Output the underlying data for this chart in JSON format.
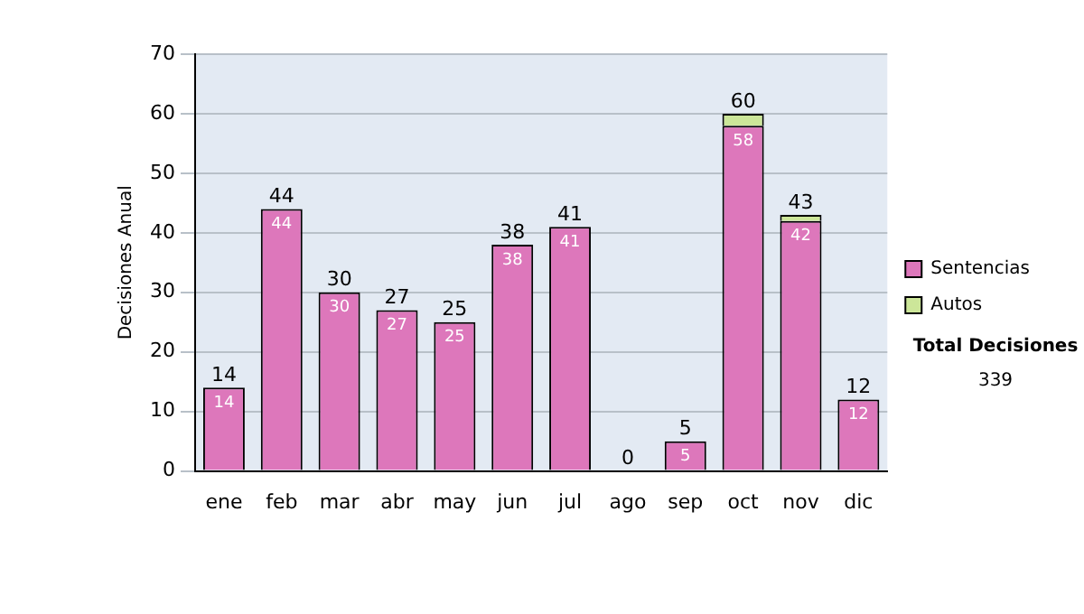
{
  "chart_data": {
    "type": "bar",
    "stacked": true,
    "ylabel": "Decisiones Anual",
    "categories": [
      "ene",
      "feb",
      "mar",
      "abr",
      "may",
      "jun",
      "jul",
      "ago",
      "sep",
      "oct",
      "nov",
      "dic"
    ],
    "series": [
      {
        "name": "Sentencias",
        "color": "#dd77bb",
        "values": [
          14,
          44,
          30,
          27,
          25,
          38,
          41,
          0,
          5,
          58,
          42,
          12
        ],
        "value_labels": [
          "14",
          "44",
          "30",
          "27",
          "25",
          "38",
          "41",
          null,
          "5",
          "58",
          "42",
          "12"
        ]
      },
      {
        "name": "Autos",
        "color": "#cce699",
        "values": [
          0,
          0,
          0,
          0,
          0,
          0,
          0,
          0,
          0,
          2,
          1,
          0
        ]
      }
    ],
    "totals": [
      "14",
      "44",
      "30",
      "27",
      "25",
      "38",
      "41",
      "0",
      "5",
      "60",
      "43",
      "12"
    ],
    "ylim": [
      0,
      70
    ],
    "yticks": [
      0,
      10,
      20,
      30,
      40,
      50,
      60,
      70
    ],
    "grid": "y",
    "legend": "right",
    "annotations": [
      "Total Decisiones",
      "339"
    ]
  }
}
